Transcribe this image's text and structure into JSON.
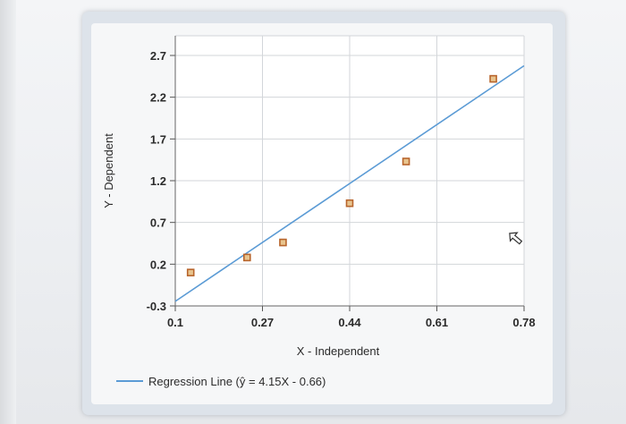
{
  "chart_data": {
    "type": "scatter",
    "title": "",
    "xlabel": "X - Independent",
    "ylabel": "Y - Dependent",
    "xlim": [
      0.1,
      0.78
    ],
    "ylim": [
      -0.3,
      2.7
    ],
    "x_ticks": [
      "0.1",
      "0.27",
      "0.44",
      "0.61",
      "0.78"
    ],
    "y_ticks": [
      "2.7",
      "2.2",
      "1.7",
      "1.2",
      "0.7",
      "0.2",
      "-0.3"
    ],
    "grid": true,
    "series": [
      {
        "type": "scatter",
        "points": [
          {
            "x": 0.13,
            "y": 0.1
          },
          {
            "x": 0.24,
            "y": 0.28
          },
          {
            "x": 0.31,
            "y": 0.46
          },
          {
            "x": 0.44,
            "y": 0.93
          },
          {
            "x": 0.55,
            "y": 1.43
          },
          {
            "x": 0.72,
            "y": 2.42
          }
        ],
        "marker_color": "#b8652c",
        "marker_fill": "#e8c48e"
      },
      {
        "name": "Regression Line (ŷ = 4.15X - 0.66)",
        "type": "line",
        "slope": 4.15,
        "intercept": -0.66,
        "color": "#5b9bd5"
      }
    ],
    "legend": {
      "placement": "bottom-left",
      "label": "Regression Line (ŷ = 4.15X - 0.66)"
    }
  }
}
